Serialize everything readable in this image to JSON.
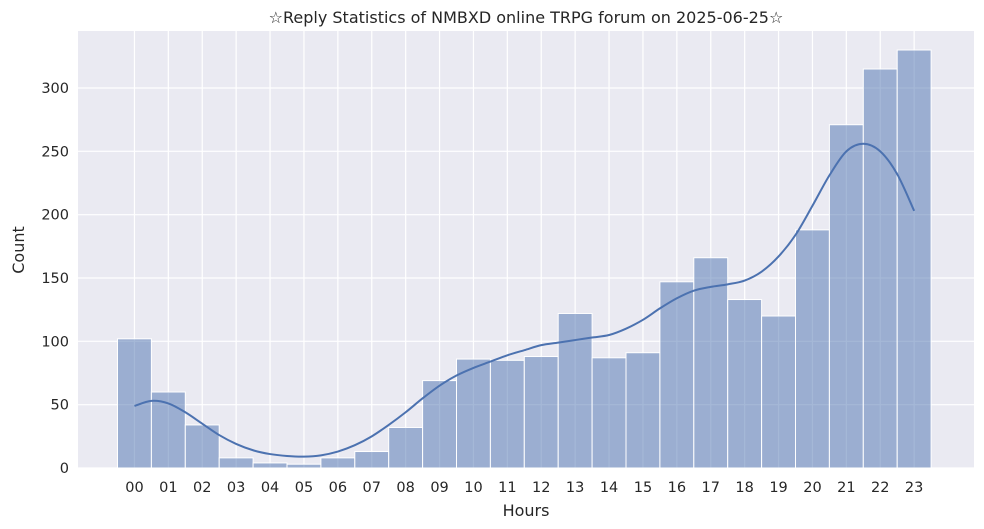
{
  "chart_data": {
    "type": "bar",
    "title": "☆Reply Statistics of NMBXD online TRPG forum on 2025-06-25☆",
    "xlabel": "Hours",
    "ylabel": "Count",
    "categories": [
      "00",
      "01",
      "02",
      "03",
      "04",
      "05",
      "06",
      "07",
      "08",
      "09",
      "10",
      "11",
      "12",
      "13",
      "14",
      "15",
      "16",
      "17",
      "18",
      "19",
      "20",
      "21",
      "22",
      "23"
    ],
    "values": [
      102,
      60,
      34,
      8,
      4,
      3,
      8,
      13,
      32,
      69,
      86,
      85,
      88,
      122,
      87,
      91,
      147,
      166,
      133,
      120,
      188,
      271,
      315,
      330
    ],
    "yticks": [
      0,
      50,
      100,
      150,
      200,
      250,
      300
    ],
    "ylim": [
      0,
      345
    ],
    "kde": {
      "x": [
        0,
        0.5,
        1,
        1.5,
        2,
        2.5,
        3,
        3.5,
        4,
        4.5,
        5,
        5.5,
        6,
        6.5,
        7,
        7.5,
        8,
        8.5,
        9,
        9.5,
        10,
        10.5,
        11,
        11.5,
        12,
        12.5,
        13,
        13.5,
        14,
        14.5,
        15,
        15.5,
        16,
        16.5,
        17,
        17.5,
        18,
        18.5,
        19,
        19.5,
        20,
        20.5,
        21,
        21.5,
        22,
        22.5,
        23
      ],
      "y": [
        49,
        53,
        51,
        44,
        35,
        26,
        19,
        14,
        11,
        9.5,
        9,
        10,
        13,
        18,
        25,
        34,
        44,
        55,
        65,
        73,
        79,
        84,
        89,
        93,
        97,
        99,
        101,
        103,
        105,
        110,
        117,
        126,
        134,
        140,
        143,
        145,
        148,
        155,
        167,
        184,
        207,
        231,
        250,
        256,
        250,
        232,
        203
      ]
    },
    "grid": true,
    "colors": {
      "bar_fill": "#4c72b0",
      "line": "#4c72b0",
      "plot_bg": "#eaeaf2",
      "grid": "#ffffff"
    }
  }
}
